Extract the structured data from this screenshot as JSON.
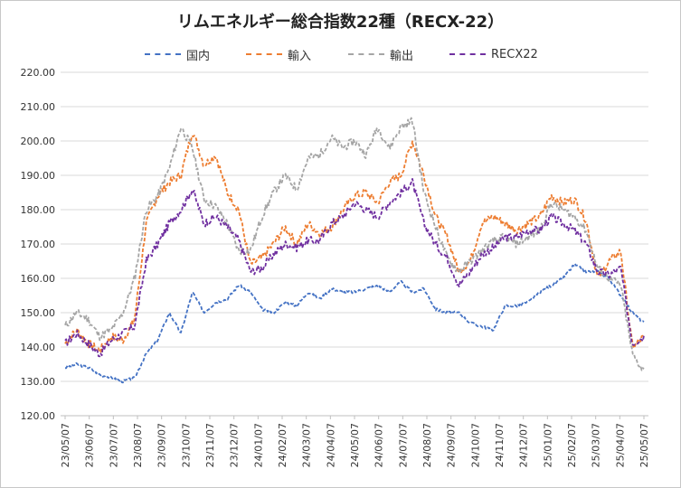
{
  "chart_data": {
    "type": "line",
    "title": "リムエネルギー総合指数22種（RECX-22）",
    "xlabel": "",
    "ylabel": "",
    "ylim": [
      120,
      220
    ],
    "yticks": [
      "120.00",
      "130.00",
      "140.00",
      "150.00",
      "160.00",
      "170.00",
      "180.00",
      "190.00",
      "200.00",
      "210.00",
      "220.00"
    ],
    "x_ticks": [
      "23/05/07",
      "23/06/07",
      "23/07/07",
      "23/08/07",
      "23/09/07",
      "23/10/07",
      "23/11/07",
      "23/12/07",
      "24/01/07",
      "24/02/07",
      "24/03/07",
      "24/04/07",
      "24/05/07",
      "24/06/07",
      "24/07/07",
      "24/08/07",
      "24/09/07",
      "24/10/07",
      "24/11/07",
      "24/12/07",
      "25/01/07",
      "25/02/07",
      "25/03/07",
      "25/04/07",
      "25/05/07"
    ],
    "grid": "horizontal",
    "legend_position": "top",
    "series": [
      {
        "name": "国内",
        "color": "#4472c4",
        "values": [
          134,
          135,
          134,
          132,
          131,
          130,
          131,
          138,
          142,
          150,
          144,
          156,
          150,
          153,
          154,
          158,
          156,
          151,
          150,
          153,
          152,
          156,
          154,
          157,
          156,
          156,
          157,
          158,
          156,
          159,
          156,
          157,
          151,
          150,
          150,
          147,
          146,
          145,
          152,
          152,
          153,
          156,
          158,
          160,
          164,
          162,
          162,
          160,
          155,
          150,
          147
        ]
      },
      {
        "name": "輸入",
        "color": "#ed7d31",
        "values": [
          141,
          145,
          141,
          139,
          143,
          142,
          148,
          176,
          184,
          188,
          190,
          203,
          193,
          196,
          185,
          180,
          164,
          166,
          170,
          175,
          170,
          176,
          173,
          175,
          180,
          184,
          185,
          182,
          188,
          190,
          200,
          190,
          178,
          172,
          162,
          165,
          176,
          178,
          176,
          174,
          176,
          178,
          184,
          182,
          183,
          177,
          160,
          165,
          168,
          140,
          143
        ]
      },
      {
        "name": "輸出",
        "color": "#a5a5a5",
        "values": [
          146,
          150,
          148,
          143,
          145,
          150,
          160,
          180,
          184,
          192,
          204,
          198,
          183,
          181,
          176,
          168,
          168,
          178,
          185,
          190,
          186,
          195,
          196,
          201,
          198,
          200,
          196,
          204,
          198,
          204,
          206,
          185,
          175,
          166,
          162,
          165,
          168,
          171,
          172,
          170,
          172,
          174,
          182,
          180,
          178,
          174,
          163,
          160,
          158,
          138,
          133
        ]
      },
      {
        "name": "RECX22",
        "color": "#7030a0",
        "values": [
          141,
          144,
          141,
          138,
          142,
          144,
          146,
          165,
          170,
          176,
          180,
          186,
          176,
          178,
          175,
          171,
          162,
          163,
          167,
          170,
          169,
          171,
          171,
          176,
          178,
          182,
          180,
          178,
          182,
          185,
          188,
          176,
          170,
          166,
          158,
          162,
          167,
          169,
          172,
          172,
          174,
          174,
          178,
          176,
          174,
          170,
          162,
          161,
          163,
          141,
          143
        ]
      }
    ]
  }
}
